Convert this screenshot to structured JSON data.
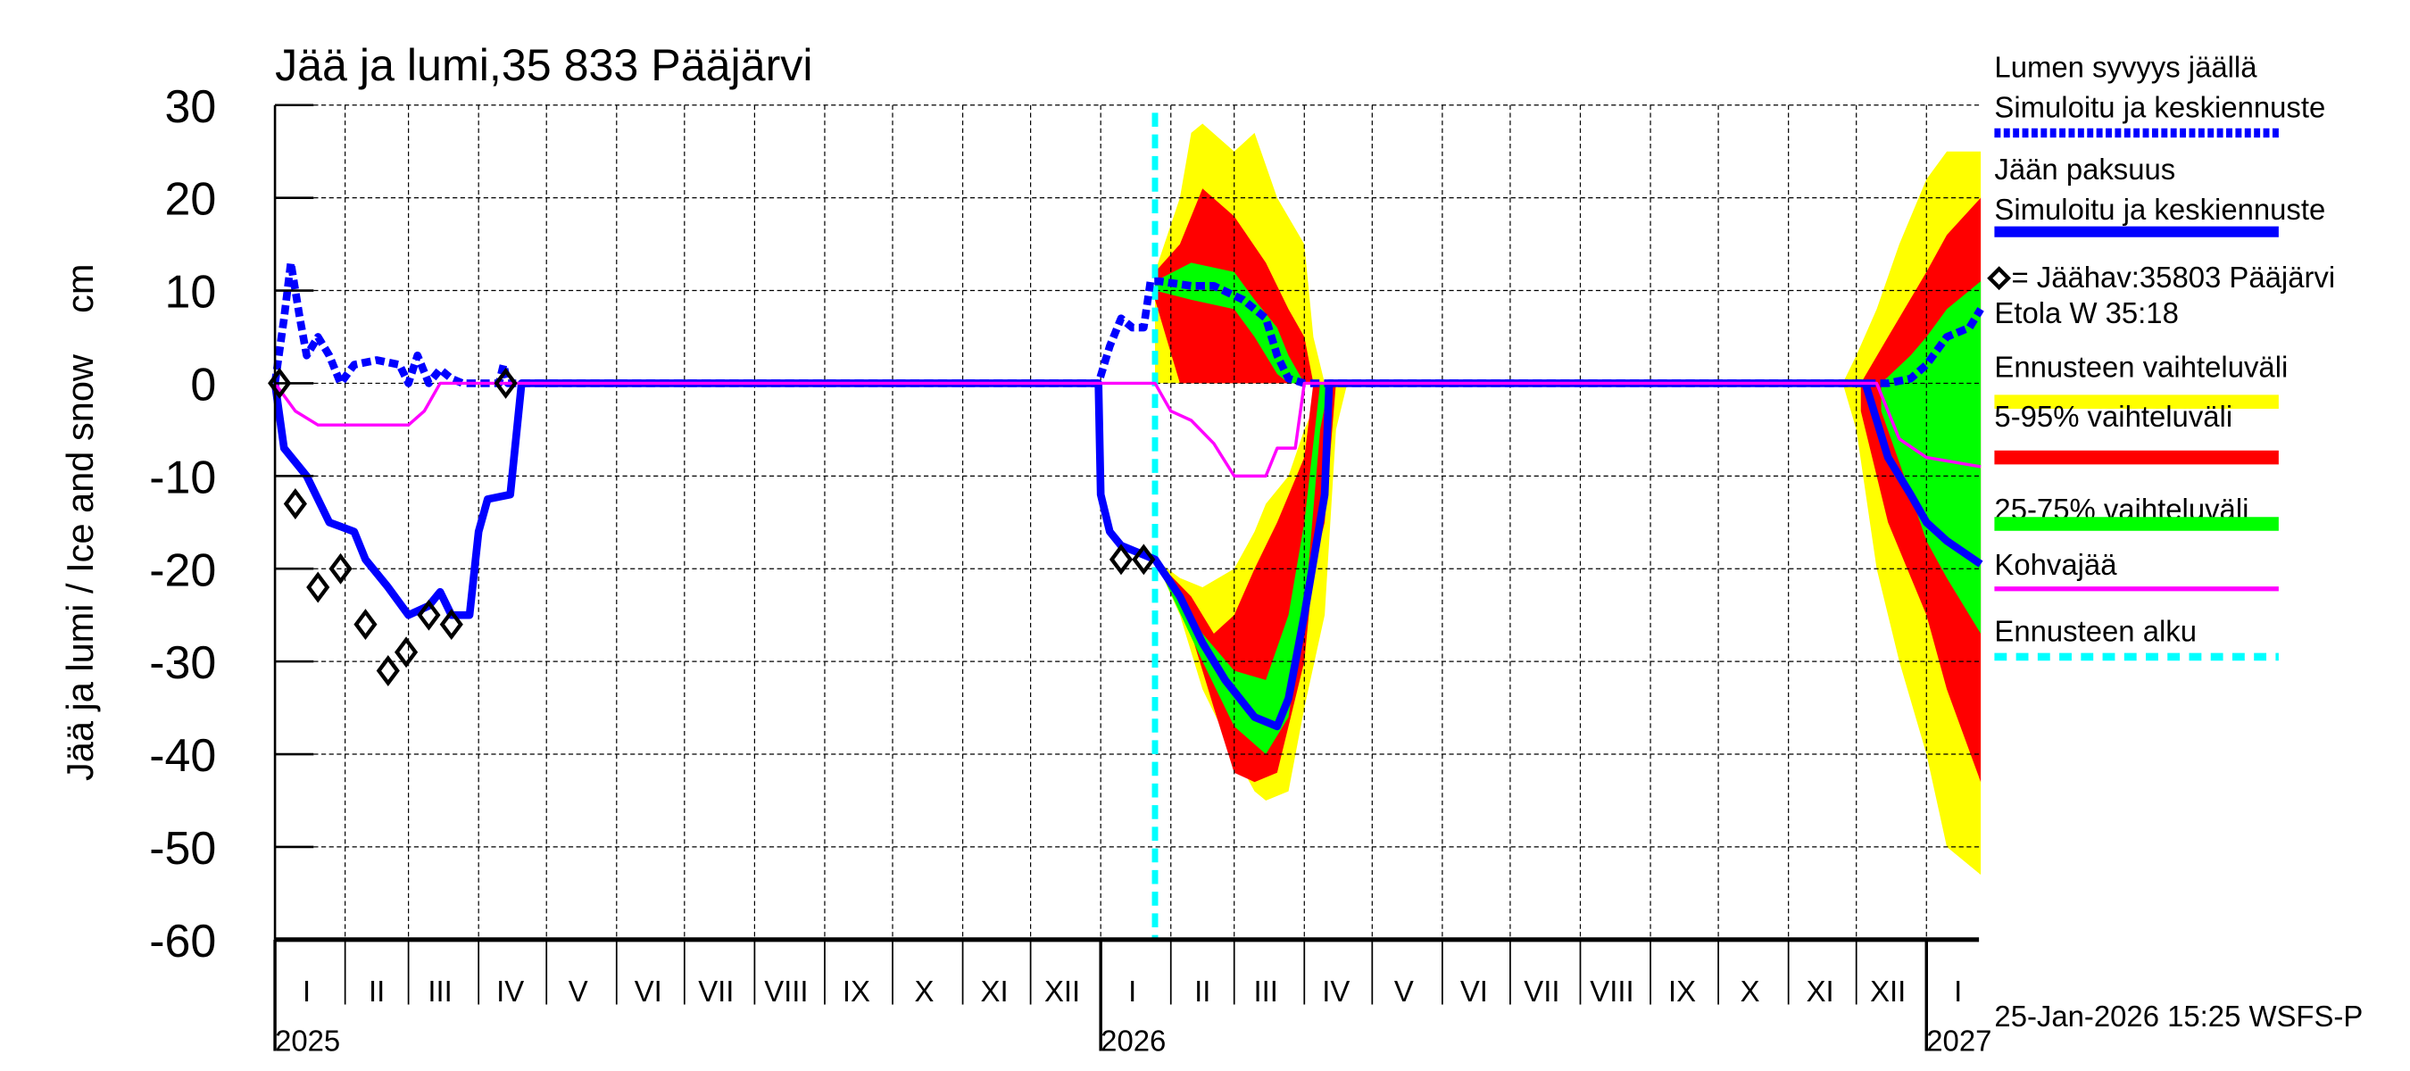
{
  "chart_data": {
    "type": "area",
    "title": "Jää ja lumi,35 833 Pääjärvi",
    "ylabel": "Jää ja lumi / Ice and snow    cm",
    "ylim": [
      -60,
      30
    ],
    "yticks": [
      30,
      20,
      10,
      0,
      -10,
      -20,
      -30,
      -40,
      -50,
      -60
    ],
    "xlim": [
      "2025-01-01",
      "2027-01-25"
    ],
    "month_labels": [
      "I",
      "II",
      "III",
      "IV",
      "V",
      "VI",
      "VII",
      "VIII",
      "IX",
      "X",
      "XI",
      "XII"
    ],
    "year_labels": [
      "2025",
      "2026",
      "2027"
    ],
    "grid": true,
    "legend_position": "right",
    "forecast_start": "2026-01-25",
    "timestamp": "25-Jan-2026 15:25 WSFS-P",
    "colors": {
      "snow": "#0000ff",
      "ice": "#0000ff",
      "full": "#ffff00",
      "p5_95": "#ff0000",
      "p25_75": "#00ff00",
      "slush": "#ff00ff",
      "forecast": "#00ffff",
      "obs": "#000000"
    },
    "legend": [
      {
        "key": "snow",
        "lines": [
          "Lumen syvyys jäällä",
          "Simuloitu ja keskiennuste"
        ]
      },
      {
        "key": "ice",
        "lines": [
          "Jään paksuus",
          "Simuloitu ja keskiennuste"
        ]
      },
      {
        "key": "obs",
        "lines": [
          "= Jäähav:35803 Pääjärvi",
          "Etola W 35:18"
        ]
      },
      {
        "key": "full",
        "lines": [
          "Ennusteen vaihteluväli"
        ]
      },
      {
        "key": "p5_95",
        "lines": [
          "5-95% vaihteluväli"
        ]
      },
      {
        "key": "p25_75",
        "lines": [
          "25-75% vaihteluväli"
        ]
      },
      {
        "key": "slush",
        "lines": [
          "Kohvajää"
        ]
      },
      {
        "key": "forecast",
        "lines": [
          "Ennusteen alku"
        ]
      }
    ],
    "bands": [
      {
        "key": "full",
        "dates": [
          "2026-01-25",
          "2026-02-05",
          "2026-02-10",
          "2026-02-15",
          "2026-03-01",
          "2026-03-10",
          "2026-03-20",
          "2026-04-01",
          "2026-04-05",
          "2026-04-10"
        ],
        "upper": [
          12,
          20,
          27,
          28,
          25,
          27,
          20,
          15,
          5,
          0
        ],
        "lower": [
          0,
          0,
          0,
          0,
          0,
          0,
          0,
          0,
          0,
          0
        ]
      },
      {
        "key": "p5_95",
        "dates": [
          "2026-01-25",
          "2026-02-05",
          "2026-02-15",
          "2026-03-01",
          "2026-03-15",
          "2026-03-25",
          "2026-04-01",
          "2026-04-05"
        ],
        "upper": [
          12,
          15,
          21,
          18,
          13,
          8,
          5,
          0
        ],
        "lower": [
          9,
          0,
          0,
          0,
          0,
          0,
          0,
          0
        ]
      },
      {
        "key": "p25_75",
        "dates": [
          "2026-01-25",
          "2026-02-10",
          "2026-03-01",
          "2026-03-10",
          "2026-03-20",
          "2026-03-25",
          "2026-04-01"
        ],
        "upper": [
          11,
          13,
          12,
          9,
          6,
          3,
          0
        ],
        "lower": [
          10,
          9,
          8,
          5,
          1,
          0,
          0
        ]
      },
      {
        "key": "full",
        "dates": [
          "2026-01-25",
          "2026-02-05",
          "2026-02-15",
          "2026-03-01",
          "2026-03-10",
          "2026-03-15",
          "2026-03-25",
          "2026-04-01",
          "2026-04-10",
          "2026-04-15",
          "2026-04-20"
        ],
        "upper": [
          -19,
          -21,
          -22,
          -20,
          -16,
          -13,
          -10,
          -5,
          0,
          0,
          0
        ],
        "lower": [
          -19,
          -25,
          -33,
          -40,
          -44,
          -45,
          -44,
          -35,
          -25,
          -5,
          0
        ]
      },
      {
        "key": "p5_95",
        "dates": [
          "2026-01-25",
          "2026-02-10",
          "2026-02-20",
          "2026-03-01",
          "2026-03-10",
          "2026-03-20",
          "2026-04-01",
          "2026-04-05",
          "2026-04-10",
          "2026-04-15"
        ],
        "upper": [
          -19,
          -23,
          -27,
          -25,
          -20,
          -15,
          -8,
          0,
          0,
          0
        ],
        "lower": [
          -19,
          -27,
          -35,
          -42,
          -43,
          -42,
          -30,
          -20,
          -15,
          0
        ]
      },
      {
        "key": "p25_75",
        "dates": [
          "2026-01-25",
          "2026-02-15",
          "2026-03-01",
          "2026-03-15",
          "2026-03-25",
          "2026-04-01",
          "2026-04-08",
          "2026-04-12"
        ],
        "upper": [
          -19,
          -27,
          -31,
          -32,
          -25,
          -15,
          0,
          0
        ],
        "lower": [
          -19,
          -30,
          -37,
          -40,
          -36,
          -25,
          -5,
          0
        ]
      },
      {
        "key": "full",
        "dates": [
          "2026-11-25",
          "2026-12-01",
          "2026-12-10",
          "2026-12-20",
          "2027-01-01",
          "2027-01-10",
          "2027-01-25"
        ],
        "upper": [
          0,
          3,
          8,
          15,
          22,
          25,
          25
        ],
        "lower": [
          0,
          -5,
          -20,
          -30,
          -40,
          -50,
          -53
        ]
      },
      {
        "key": "p5_95",
        "dates": [
          "2026-12-03",
          "2026-12-15",
          "2027-01-01",
          "2027-01-10",
          "2027-01-25"
        ],
        "upper": [
          0,
          5,
          12,
          16,
          20
        ],
        "lower": [
          -3,
          -15,
          -25,
          -33,
          -43
        ]
      },
      {
        "key": "p25_75",
        "dates": [
          "2026-12-12",
          "2026-12-25",
          "2027-01-01",
          "2027-01-10",
          "2027-01-25"
        ],
        "upper": [
          0,
          3,
          5,
          8,
          11
        ],
        "lower": [
          -3,
          -12,
          -17,
          -21,
          -27
        ]
      }
    ],
    "series": [
      {
        "key": "ice",
        "dates": [
          "2025-01-01",
          "2025-01-05",
          "2025-01-15",
          "2025-01-25",
          "2025-02-05",
          "2025-02-10",
          "2025-02-20",
          "2025-03-01",
          "2025-03-10",
          "2025-03-15",
          "2025-03-20",
          "2025-03-28",
          "2025-04-01",
          "2025-04-05",
          "2025-04-15",
          "2025-04-20",
          "2025-12-31",
          "2026-01-01",
          "2026-01-05",
          "2026-01-10",
          "2026-01-20",
          "2026-01-25",
          "2026-02-05",
          "2026-02-15",
          "2026-02-25",
          "2026-03-10",
          "2026-03-20",
          "2026-03-25",
          "2026-04-01",
          "2026-04-10",
          "2026-04-12",
          "2026-12-05",
          "2026-12-15",
          "2026-12-25",
          "2027-01-01",
          "2027-01-10",
          "2027-01-25"
        ],
        "values": [
          0,
          -7,
          -10,
          -15,
          -16,
          -19,
          -22,
          -25,
          -24,
          -22.5,
          -25,
          -25,
          -16,
          -12.5,
          -12,
          0,
          0,
          -12,
          -16,
          -17.5,
          -18.5,
          -19,
          -23,
          -28,
          -32,
          -36,
          -37,
          -34,
          -25,
          -12,
          0,
          0,
          -8,
          -12,
          -15,
          -17,
          -19.5
        ]
      },
      {
        "key": "snow",
        "dates": [
          "2025-01-01",
          "2025-01-05",
          "2025-01-08",
          "2025-01-12",
          "2025-01-15",
          "2025-01-20",
          "2025-01-25",
          "2025-01-30",
          "2025-02-05",
          "2025-02-15",
          "2025-02-25",
          "2025-03-01",
          "2025-03-05",
          "2025-03-10",
          "2025-03-15",
          "2025-03-20",
          "2025-03-25",
          "2025-04-10",
          "2025-04-12",
          "2025-04-14",
          "2025-12-31",
          "2026-01-05",
          "2026-01-10",
          "2026-01-15",
          "2026-01-20",
          "2026-01-23",
          "2026-01-27",
          "2026-02-10",
          "2026-02-20",
          "2026-03-05",
          "2026-03-15",
          "2026-03-20",
          "2026-03-25",
          "2026-04-01",
          "2026-12-15",
          "2026-12-25",
          "2027-01-01",
          "2027-01-10",
          "2027-01-20",
          "2027-01-25"
        ],
        "values": [
          0,
          7,
          13,
          7,
          3,
          5,
          3,
          0,
          2,
          2.5,
          2,
          0,
          3,
          0,
          1.5,
          0.5,
          0,
          0,
          2,
          0,
          0,
          4,
          7,
          6,
          6,
          11,
          11,
          10.5,
          10.5,
          9,
          7,
          3,
          0.5,
          0,
          0,
          0.5,
          2,
          5,
          6,
          8
        ]
      },
      {
        "key": "slush",
        "dates": [
          "2025-01-01",
          "2025-01-10",
          "2025-01-20",
          "2025-02-01",
          "2025-03-01",
          "2025-03-08",
          "2025-03-15",
          "2026-01-25",
          "2026-02-01",
          "2026-02-10",
          "2026-02-20",
          "2026-03-01",
          "2026-03-15",
          "2026-03-20",
          "2026-03-28",
          "2026-04-01",
          "2026-12-10",
          "2026-12-20",
          "2027-01-01",
          "2027-01-25"
        ],
        "values": [
          0,
          -3,
          -4.5,
          -4.5,
          -4.5,
          -3,
          0,
          0,
          -3,
          -4,
          -6.5,
          -10,
          -10,
          -7,
          -7,
          0,
          0,
          -6,
          -8,
          -9
        ]
      }
    ],
    "observations": {
      "dates": [
        "2025-01-03",
        "2025-01-10",
        "2025-01-20",
        "2025-01-30",
        "2025-02-10",
        "2025-02-20",
        "2025-02-28",
        "2025-03-10",
        "2025-03-20",
        "2025-04-13",
        "2026-01-10",
        "2026-01-20"
      ],
      "values": [
        0,
        -13,
        -22,
        -20,
        -26,
        -31,
        -29,
        -25,
        -26,
        0,
        -19,
        -19
      ]
    }
  }
}
